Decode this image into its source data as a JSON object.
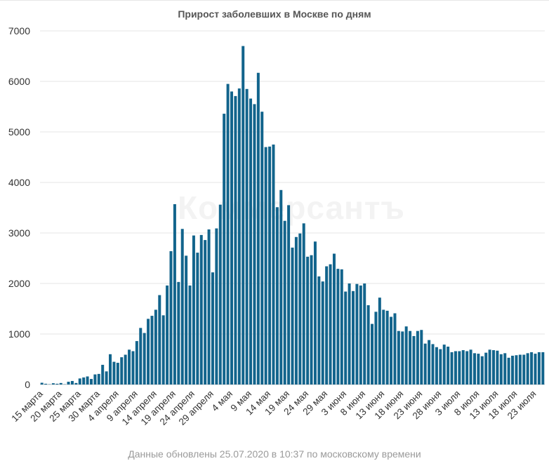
{
  "chart_data": {
    "type": "bar",
    "title": "Прирост заболевших в Москве по дням",
    "xlabel": "",
    "ylabel": "",
    "ylim": [
      0,
      7000
    ],
    "yticks": [
      0,
      1000,
      2000,
      3000,
      4000,
      5000,
      6000,
      7000
    ],
    "grid": true,
    "legend": "none",
    "bar_color": "#12648c",
    "watermark": "Коммерсантъ",
    "x_tick_labels": [
      "15 марта",
      "20 марта",
      "25 марта",
      "30 марта",
      "4 апреля",
      "9 апреля",
      "14 апреля",
      "19 апреля",
      "24 апреля",
      "29 апреля",
      "4 мая",
      "9 мая",
      "14 мая",
      "19 мая",
      "24 мая",
      "29 мая",
      "3 июня",
      "8 июня",
      "13 июня",
      "18 июня",
      "23 июня",
      "28 июня",
      "3 июля",
      "8 июля",
      "13 июля",
      "18 июля",
      "23 июля"
    ],
    "categories": [
      "15 марта",
      "16 марта",
      "17 марта",
      "18 марта",
      "19 марта",
      "20 марта",
      "21 марта",
      "22 марта",
      "23 марта",
      "24 марта",
      "25 марта",
      "26 марта",
      "27 марта",
      "28 марта",
      "29 марта",
      "30 марта",
      "31 марта",
      "1 апреля",
      "2 апреля",
      "3 апреля",
      "4 апреля",
      "5 апреля",
      "6 апреля",
      "7 апреля",
      "8 апреля",
      "9 апреля",
      "10 апреля",
      "11 апреля",
      "12 апреля",
      "13 апреля",
      "14 апреля",
      "15 апреля",
      "16 апреля",
      "17 апреля",
      "18 апреля",
      "19 апреля",
      "20 апреля",
      "21 апреля",
      "22 апреля",
      "23 апреля",
      "24 апреля",
      "25 апреля",
      "26 апреля",
      "27 апреля",
      "28 апреля",
      "29 апреля",
      "30 апреля",
      "1 мая",
      "2 мая",
      "3 мая",
      "4 мая",
      "5 мая",
      "6 мая",
      "7 мая",
      "8 мая",
      "9 мая",
      "10 мая",
      "11 мая",
      "12 мая",
      "13 мая",
      "14 мая",
      "15 мая",
      "16 мая",
      "17 мая",
      "18 мая",
      "19 мая",
      "20 мая",
      "21 мая",
      "22 мая",
      "23 мая",
      "24 мая",
      "25 мая",
      "26 мая",
      "27 мая",
      "28 мая",
      "29 мая",
      "30 мая",
      "31 мая",
      "1 июня",
      "2 июня",
      "3 июня",
      "4 июня",
      "5 июня",
      "6 июня",
      "7 июня",
      "8 июня",
      "9 июня",
      "10 июня",
      "11 июня",
      "12 июня",
      "13 июня",
      "14 июня",
      "15 июня",
      "16 июня",
      "17 июня",
      "18 июня",
      "19 июня",
      "20 июня",
      "21 июня",
      "22 июня",
      "23 июня",
      "24 июня",
      "25 июня",
      "26 июня",
      "27 июня",
      "28 июня",
      "29 июня",
      "30 июня",
      "1 июля",
      "2 июля",
      "3 июля",
      "4 июля",
      "5 июля",
      "6 июля",
      "7 июля",
      "8 июля",
      "9 июля",
      "10 июля",
      "11 июля",
      "12 июля",
      "13 июля",
      "14 июля",
      "15 июля",
      "16 июля",
      "17 июля",
      "18 июля",
      "19 июля",
      "20 июля",
      "21 июля",
      "22 июля",
      "23 июля",
      "24 июля",
      "25 июля"
    ],
    "values": [
      35,
      15,
      5,
      25,
      15,
      30,
      5,
      55,
      70,
      30,
      120,
      140,
      160,
      110,
      200,
      210,
      390,
      260,
      600,
      450,
      430,
      540,
      590,
      690,
      660,
      860,
      1120,
      1020,
      1300,
      1360,
      1480,
      1770,
      1370,
      1960,
      2640,
      3570,
      2030,
      3080,
      2550,
      1960,
      2950,
      2610,
      2960,
      2860,
      3070,
      2220,
      3090,
      3560,
      5360,
      5950,
      5800,
      5710,
      5860,
      6700,
      5850,
      5660,
      5550,
      6170,
      5400,
      4700,
      4710,
      4750,
      3510,
      3850,
      3240,
      3550,
      2710,
      2920,
      2990,
      3190,
      2530,
      2560,
      2830,
      2140,
      2040,
      2340,
      2380,
      2590,
      2290,
      2280,
      1840,
      2000,
      1850,
      1990,
      1960,
      2000,
      1570,
      1200,
      1440,
      1720,
      1480,
      1460,
      1340,
      1410,
      1060,
      1050,
      1150,
      1060,
      960,
      1060,
      1080,
      810,
      880,
      800,
      740,
      700,
      790,
      750,
      640,
      660,
      660,
      680,
      660,
      690,
      620,
      610,
      560,
      630,
      690,
      680,
      670,
      600,
      620,
      530,
      570,
      580,
      590,
      590,
      620,
      640,
      610,
      640,
      640
    ]
  },
  "footer": {
    "note": "Данные обновлены 25.07.2020 в 10:37 по московскому времени"
  }
}
